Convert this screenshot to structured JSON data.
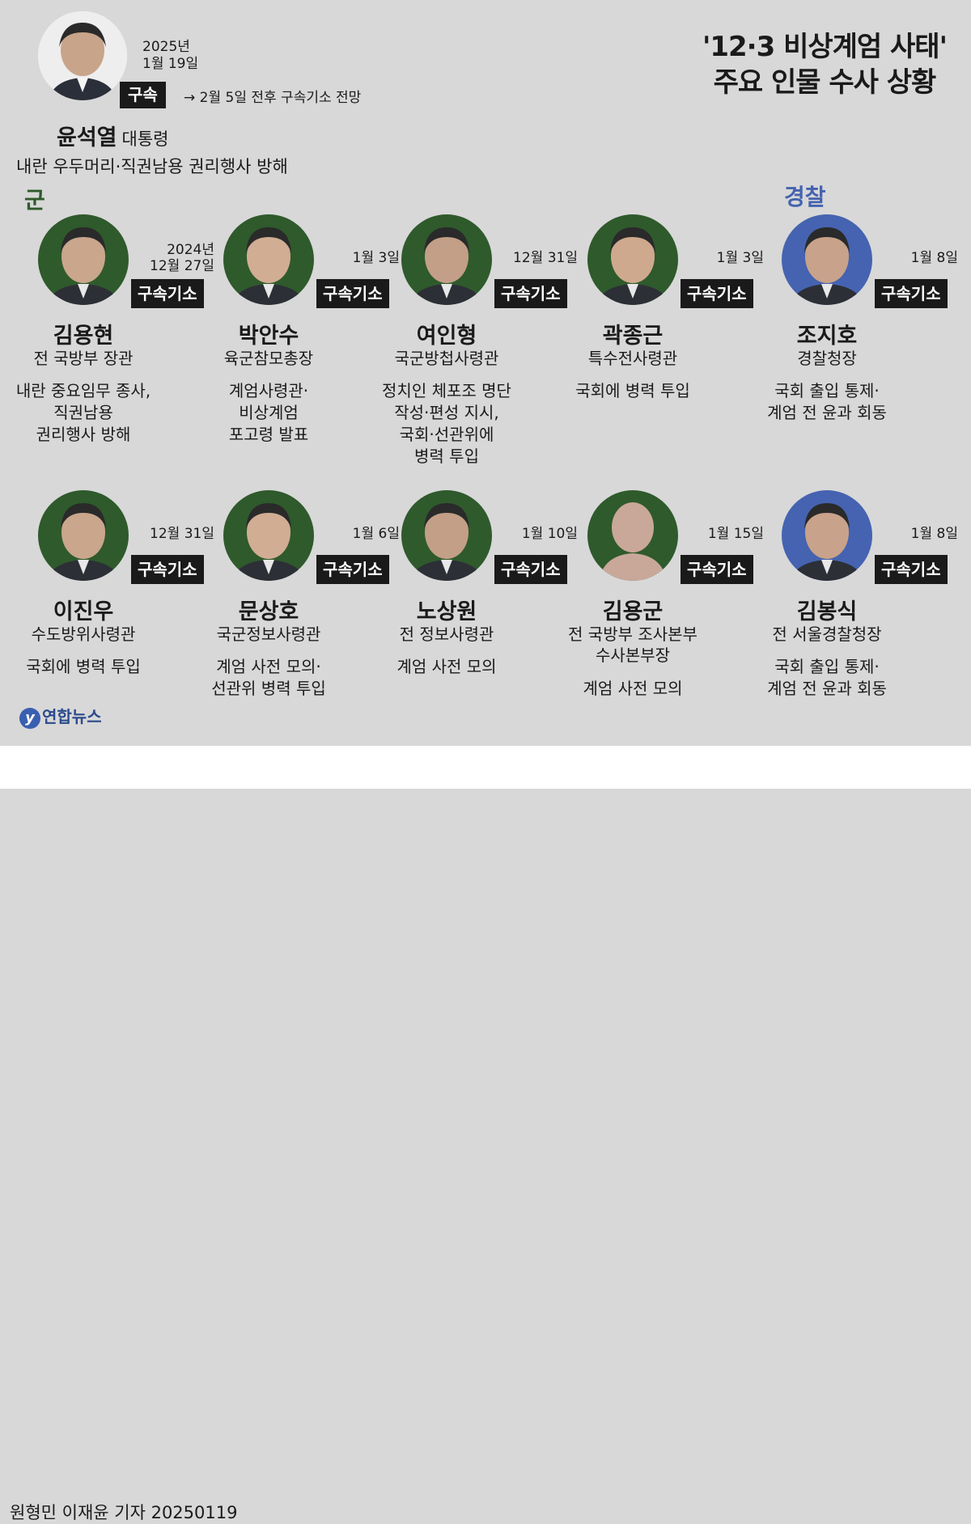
{
  "title_line1": "'12·3 비상계엄 사태'",
  "title_line2": "주요 인물 수사 상황",
  "president": {
    "date_year": "2025년",
    "date_md": "1월 19일",
    "badge": "구속",
    "note": "→ 2월 5일 전후 구속기소 전망",
    "name": "윤석열",
    "title": "대통령",
    "charge": "내란 우두머리·직권남용 권리행사 방해"
  },
  "sections": {
    "army": "군",
    "police": "경찰"
  },
  "people": [
    {
      "group": "army",
      "date": [
        "2024년",
        "12월 27일"
      ],
      "badge": "구속기소",
      "name": "김용현",
      "title": [
        "전 국방부 장관"
      ],
      "desc": [
        "내란 중요임무 종사,",
        "직권남용",
        "권리행사 방해"
      ]
    },
    {
      "group": "army",
      "date": [
        "1월 3일"
      ],
      "badge": "구속기소",
      "name": "박안수",
      "title": [
        "육군참모총장"
      ],
      "desc": [
        "계엄사령관·",
        "비상계엄",
        "포고령 발표"
      ]
    },
    {
      "group": "army",
      "date": [
        "12월 31일"
      ],
      "badge": "구속기소",
      "name": "여인형",
      "title": [
        "국군방첩사령관"
      ],
      "desc": [
        "정치인 체포조 명단",
        "작성·편성 지시,",
        "국회·선관위에",
        "병력 투입"
      ]
    },
    {
      "group": "army",
      "date": [
        "1월 3일"
      ],
      "badge": "구속기소",
      "name": "곽종근",
      "title": [
        "특수전사령관"
      ],
      "desc": [
        "국회에 병력 투입"
      ]
    },
    {
      "group": "police",
      "date": [
        "1월 8일"
      ],
      "badge": "구속기소",
      "name": "조지호",
      "title": [
        "경찰청장"
      ],
      "desc": [
        "국회 출입 통제·",
        "계엄 전 윤과 회동"
      ]
    },
    {
      "group": "army",
      "date": [
        "12월 31일"
      ],
      "badge": "구속기소",
      "name": "이진우",
      "title": [
        "수도방위사령관"
      ],
      "desc": [
        "국회에 병력 투입"
      ]
    },
    {
      "group": "army",
      "date": [
        "1월 6일"
      ],
      "badge": "구속기소",
      "name": "문상호",
      "title": [
        "국군정보사령관"
      ],
      "desc": [
        "계엄 사전 모의·",
        "선관위 병력 투입"
      ]
    },
    {
      "group": "army",
      "date": [
        "1월 10일"
      ],
      "badge": "구속기소",
      "name": "노상원",
      "title": [
        "전 정보사령관"
      ],
      "desc": [
        "계엄 사전 모의"
      ]
    },
    {
      "group": "army",
      "date": [
        "1월 15일"
      ],
      "badge": "구속기소",
      "name": "김용군",
      "title": [
        "전 국방부 조사본부",
        "수사본부장"
      ],
      "desc": [
        "계엄 사전 모의"
      ],
      "silhouette": true
    },
    {
      "group": "police",
      "date": [
        "1월 8일"
      ],
      "badge": "구속기소",
      "name": "김봉식",
      "title": [
        "전 서울경찰청장"
      ],
      "desc": [
        "국회 출입 통제·",
        "계엄 전 윤과 회동"
      ]
    }
  ],
  "logo": "연합뉴스",
  "byline": "원형민 이재윤 기자  20250119",
  "colors": {
    "army": "#2f5a2c",
    "police": "#4563b0",
    "badge": "#1a1a1a",
    "background": "#d8d8d8"
  }
}
